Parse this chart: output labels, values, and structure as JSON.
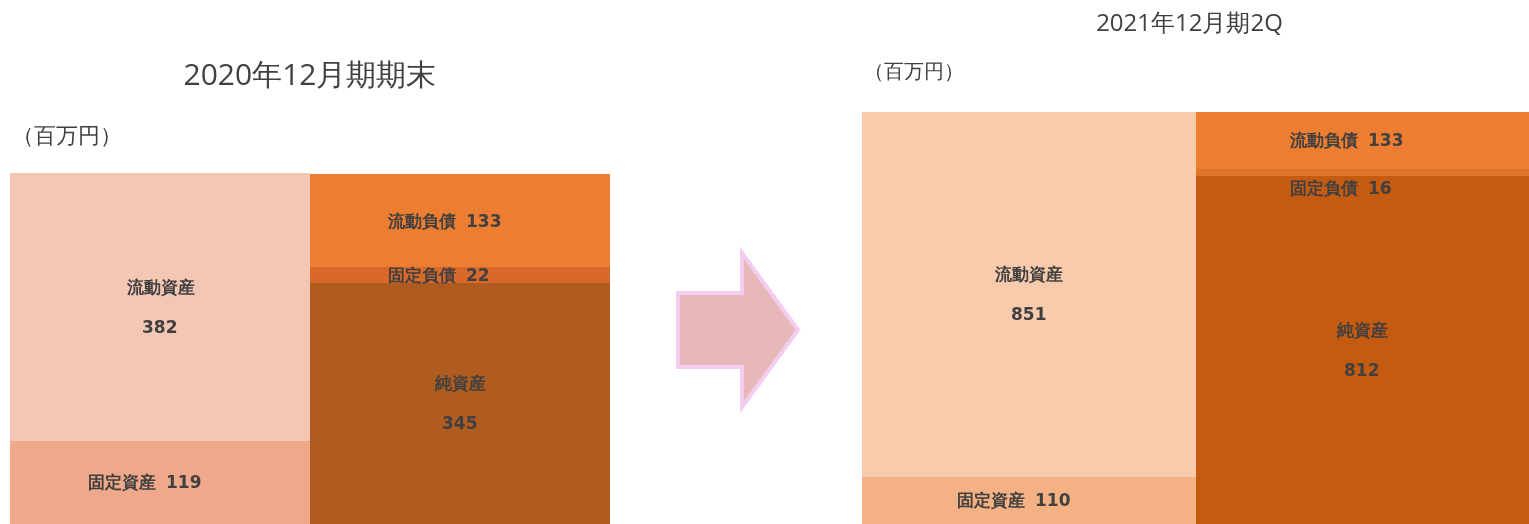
{
  "chart_data": [
    {
      "type": "bar",
      "title": "2020年12月期期末",
      "ylabel": "（百万円）",
      "stacked": true,
      "categories": [
        null,
        null
      ],
      "tick_labels": false,
      "legend": false,
      "data_labels": true,
      "series": [
        {
          "name": "固定資産",
          "color": "#f0a88a",
          "values": [
            119,
            null
          ]
        },
        {
          "name": "流動資産",
          "color": "#f4c7b5",
          "values": [
            382,
            null
          ]
        },
        {
          "name": "純資産",
          "color": "#b05c20",
          "values": [
            null,
            345
          ]
        },
        {
          "name": "固定負債",
          "color": "#d9692a",
          "values": [
            null,
            22
          ]
        },
        {
          "name": "流動負債",
          "color": "#ed7d31",
          "values": [
            null,
            133
          ]
        }
      ]
    },
    {
      "type": "bar",
      "title": "2021年12月期2Q",
      "ylabel": "（百万円）",
      "stacked": true,
      "categories": [
        null,
        null
      ],
      "tick_labels": false,
      "legend": false,
      "data_labels": true,
      "series": [
        {
          "name": "固定資産",
          "color": "#f4b183",
          "values": [
            110,
            null
          ]
        },
        {
          "name": "流動資産",
          "color": "#f8cbad",
          "values": [
            851,
            null
          ]
        },
        {
          "name": "純資産",
          "color": "#c55a11",
          "values": [
            null,
            812
          ]
        },
        {
          "name": "固定負債",
          "color": "#e0742a",
          "values": [
            null,
            16
          ]
        },
        {
          "name": "流動負債",
          "color": "#ed7d31",
          "values": [
            null,
            133
          ]
        }
      ]
    }
  ]
}
